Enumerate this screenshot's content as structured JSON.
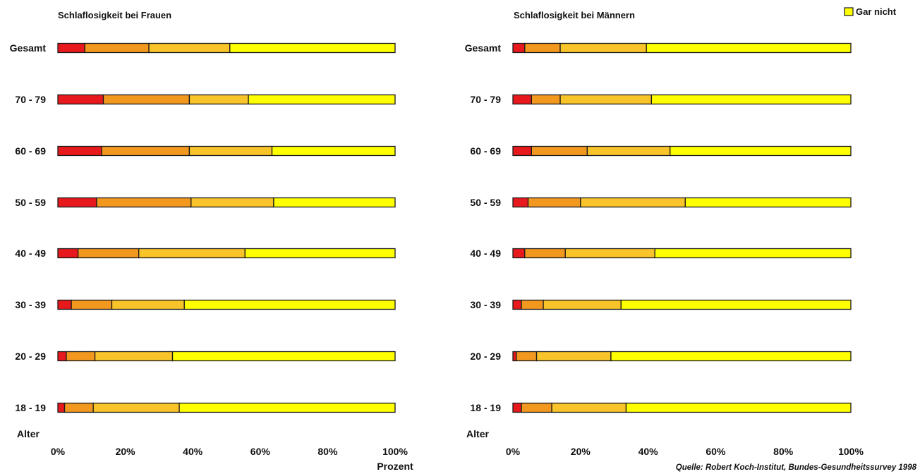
{
  "legend_label": "Gar nicht",
  "colors": {
    "seg1": "#e8191c",
    "seg2": "#f3981f",
    "seg3": "#f9c42a",
    "seg4": "#ffff00",
    "stroke": "#1a1a1a"
  },
  "row_axis_label": "Alter",
  "x_axis_unit_label": "Prozent",
  "source_note": "Quelle: Robert Koch-Institut, Bundes-Gesundheitssurvey 1998",
  "chart_data": [
    {
      "type": "bar",
      "orientation": "horizontal",
      "stacked": true,
      "title": "Schlaflosigkeit bei Frauen",
      "categories": [
        "Gesamt",
        "70 - 79",
        "60 - 69",
        "50 - 59",
        "40 - 49",
        "30 - 39",
        "20 - 29",
        "18 - 19"
      ],
      "boundaries": [
        [
          8,
          27,
          51,
          100
        ],
        [
          13.5,
          39,
          56.5,
          100
        ],
        [
          13,
          39,
          63.5,
          100
        ],
        [
          11.5,
          39.5,
          64,
          100
        ],
        [
          6,
          24,
          55.5,
          100
        ],
        [
          4,
          16,
          37.5,
          100
        ],
        [
          2.5,
          11,
          34,
          100
        ],
        [
          2,
          10.5,
          36,
          100
        ]
      ],
      "xlim": [
        0,
        100
      ],
      "xticks": [
        "0%",
        "20%",
        "40%",
        "60%",
        "80%",
        "100%"
      ],
      "xlabel": "Prozent",
      "ylabel": "Alter"
    },
    {
      "type": "bar",
      "orientation": "horizontal",
      "stacked": true,
      "title": "Schlaflosigkeit bei Männern",
      "categories": [
        "Gesamt",
        "70 - 79",
        "60 - 69",
        "50 - 59",
        "40 - 49",
        "30 - 39",
        "20 - 29",
        "18 - 19"
      ],
      "boundaries": [
        [
          3.5,
          14,
          39.5,
          100
        ],
        [
          5.5,
          14,
          41,
          100
        ],
        [
          5.5,
          22,
          46.5,
          100
        ],
        [
          4.5,
          20,
          51,
          100
        ],
        [
          3.5,
          15.5,
          42,
          100
        ],
        [
          2.5,
          9,
          32,
          100
        ],
        [
          1,
          7,
          29,
          100
        ],
        [
          2.5,
          11.5,
          33.5,
          100
        ]
      ],
      "xlim": [
        0,
        100
      ],
      "xticks": [
        "0%",
        "20%",
        "40%",
        "60%",
        "80%",
        "100%"
      ],
      "xlabel": "",
      "ylabel": "Alter"
    }
  ]
}
